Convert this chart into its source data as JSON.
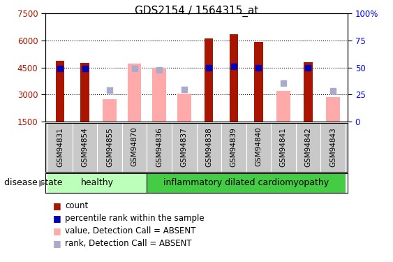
{
  "title": "GDS2154 / 1564315_at",
  "samples": [
    "GSM94831",
    "GSM94854",
    "GSM94855",
    "GSM94870",
    "GSM94836",
    "GSM94837",
    "GSM94838",
    "GSM94839",
    "GSM94840",
    "GSM94841",
    "GSM94842",
    "GSM94843"
  ],
  "count_values": [
    4850,
    4750,
    null,
    null,
    null,
    null,
    6100,
    6350,
    5900,
    null,
    4800,
    null
  ],
  "count_absent_values": [
    null,
    null,
    2750,
    4700,
    4500,
    3050,
    null,
    null,
    null,
    3200,
    null,
    2850
  ],
  "percentile_values": [
    4450,
    4450,
    null,
    null,
    null,
    null,
    4500,
    4550,
    4500,
    null,
    4500,
    null
  ],
  "rank_absent_values": [
    null,
    null,
    3250,
    4450,
    4350,
    3300,
    null,
    null,
    null,
    3650,
    null,
    3200
  ],
  "ymin": 1500,
  "ymax": 7500,
  "yticks": [
    1500,
    3000,
    4500,
    6000,
    7500
  ],
  "right_yticks": [
    0,
    25,
    50,
    75,
    100
  ],
  "healthy_label": "healthy",
  "idc_label": "inflammatory dilated cardiomyopathy",
  "disease_state_label": "disease state",
  "legend_items": [
    "count",
    "percentile rank within the sample",
    "value, Detection Call = ABSENT",
    "rank, Detection Call = ABSENT"
  ],
  "count_color": "#aa1500",
  "percentile_color": "#0000bb",
  "absent_value_color": "#ffaaaa",
  "absent_rank_color": "#aaaacc",
  "healthy_bg": "#bbffbb",
  "idc_bg": "#44cc44",
  "label_bg": "#c8c8c8",
  "title_fontsize": 11
}
